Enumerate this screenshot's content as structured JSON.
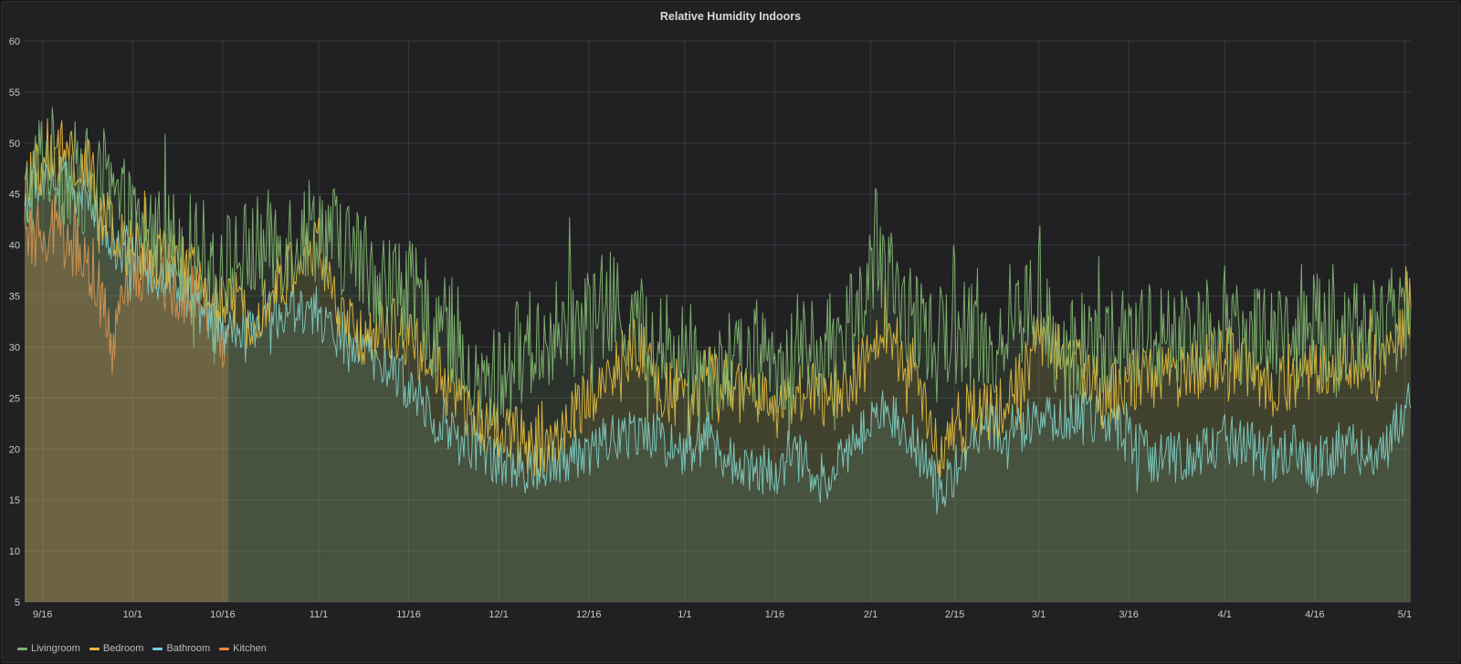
{
  "panel": {
    "title": "Relative Humidity Indoors"
  },
  "chart_data": {
    "type": "line",
    "title": "Relative Humidity Indoors",
    "xlabel": "",
    "ylabel": "",
    "ylim": [
      5,
      60
    ],
    "yticks": [
      5,
      10,
      15,
      20,
      25,
      30,
      35,
      40,
      45,
      50,
      55,
      60
    ],
    "xlim": [
      "2017-09-13",
      "2018-05-02"
    ],
    "xticks": [
      {
        "date": "2017-09-16",
        "label": "9/16"
      },
      {
        "date": "2017-10-01",
        "label": "10/1"
      },
      {
        "date": "2017-10-16",
        "label": "10/16"
      },
      {
        "date": "2017-11-01",
        "label": "11/1"
      },
      {
        "date": "2017-11-16",
        "label": "11/16"
      },
      {
        "date": "2017-12-01",
        "label": "12/1"
      },
      {
        "date": "2017-12-16",
        "label": "12/16"
      },
      {
        "date": "2018-01-01",
        "label": "1/1"
      },
      {
        "date": "2018-01-16",
        "label": "1/16"
      },
      {
        "date": "2018-02-01",
        "label": "2/1"
      },
      {
        "date": "2018-02-15",
        "label": "2/15"
      },
      {
        "date": "2018-03-01",
        "label": "3/1"
      },
      {
        "date": "2018-03-16",
        "label": "3/16"
      },
      {
        "date": "2018-04-01",
        "label": "4/1"
      },
      {
        "date": "2018-04-16",
        "label": "4/16"
      },
      {
        "date": "2018-05-01",
        "label": "5/1"
      }
    ],
    "grid": true,
    "legend_position": "bottom-left",
    "series": [
      {
        "name": "Livingroom",
        "color": "#7eb26d",
        "points": [
          [
            "2017-09-13",
            44
          ],
          [
            "2017-09-16",
            49
          ],
          [
            "2017-09-20",
            47
          ],
          [
            "2017-09-24",
            46
          ],
          [
            "2017-09-28",
            44
          ],
          [
            "2017-10-01",
            42
          ],
          [
            "2017-10-05",
            41
          ],
          [
            "2017-10-09",
            40
          ],
          [
            "2017-10-13",
            39
          ],
          [
            "2017-10-16",
            38
          ],
          [
            "2017-10-20",
            39
          ],
          [
            "2017-10-24",
            40
          ],
          [
            "2017-10-28",
            41
          ],
          [
            "2017-11-01",
            42
          ],
          [
            "2017-11-05",
            40
          ],
          [
            "2017-11-09",
            38
          ],
          [
            "2017-11-13",
            36
          ],
          [
            "2017-11-16",
            35
          ],
          [
            "2017-11-20",
            33
          ],
          [
            "2017-11-24",
            31
          ],
          [
            "2017-11-26",
            25
          ],
          [
            "2017-12-01",
            27
          ],
          [
            "2017-12-05",
            30
          ],
          [
            "2017-12-10",
            31
          ],
          [
            "2017-12-16",
            33
          ],
          [
            "2017-12-20",
            34
          ],
          [
            "2017-12-24",
            32
          ],
          [
            "2017-12-28",
            30
          ],
          [
            "2018-01-01",
            29
          ],
          [
            "2018-01-05",
            28
          ],
          [
            "2018-01-09",
            28
          ],
          [
            "2018-01-13",
            29
          ],
          [
            "2018-01-16",
            28
          ],
          [
            "2018-01-20",
            30
          ],
          [
            "2018-01-24",
            29
          ],
          [
            "2018-01-28",
            32
          ],
          [
            "2018-02-01",
            37
          ],
          [
            "2018-02-04",
            36
          ],
          [
            "2018-02-08",
            33
          ],
          [
            "2018-02-12",
            30
          ],
          [
            "2018-02-15",
            32
          ],
          [
            "2018-02-18",
            31
          ],
          [
            "2018-02-22",
            30
          ],
          [
            "2018-02-26",
            33
          ],
          [
            "2018-03-01",
            35
          ],
          [
            "2018-03-04",
            28
          ],
          [
            "2018-03-08",
            30
          ],
          [
            "2018-03-12",
            31
          ],
          [
            "2018-03-16",
            30
          ],
          [
            "2018-03-20",
            31
          ],
          [
            "2018-03-24",
            31
          ],
          [
            "2018-03-28",
            32
          ],
          [
            "2018-04-01",
            33
          ],
          [
            "2018-04-05",
            31
          ],
          [
            "2018-04-09",
            32
          ],
          [
            "2018-04-13",
            31
          ],
          [
            "2018-04-16",
            32
          ],
          [
            "2018-04-20",
            31
          ],
          [
            "2018-04-24",
            32
          ],
          [
            "2018-04-28",
            32
          ],
          [
            "2018-05-01",
            34
          ],
          [
            "2018-05-02",
            34
          ]
        ],
        "noise": 5.5
      },
      {
        "name": "Bedroom",
        "color": "#eab839",
        "points": [
          [
            "2017-09-13",
            45
          ],
          [
            "2017-09-16",
            48
          ],
          [
            "2017-09-20",
            49
          ],
          [
            "2017-09-24",
            47
          ],
          [
            "2017-09-28",
            40
          ],
          [
            "2017-10-01",
            40
          ],
          [
            "2017-10-05",
            39
          ],
          [
            "2017-10-09",
            38
          ],
          [
            "2017-10-13",
            36
          ],
          [
            "2017-10-16",
            34
          ],
          [
            "2017-10-20",
            33
          ],
          [
            "2017-10-24",
            35
          ],
          [
            "2017-10-28",
            38
          ],
          [
            "2017-11-01",
            40
          ],
          [
            "2017-11-05",
            32
          ],
          [
            "2017-11-09",
            31
          ],
          [
            "2017-11-13",
            32
          ],
          [
            "2017-11-16",
            31
          ],
          [
            "2017-11-20",
            28
          ],
          [
            "2017-11-24",
            25
          ],
          [
            "2017-11-26",
            23
          ],
          [
            "2017-12-01",
            22
          ],
          [
            "2017-12-08",
            20
          ],
          [
            "2017-12-12",
            22
          ],
          [
            "2017-12-16",
            25
          ],
          [
            "2017-12-20",
            28
          ],
          [
            "2017-12-24",
            30
          ],
          [
            "2017-12-28",
            26
          ],
          [
            "2018-01-01",
            25
          ],
          [
            "2018-01-05",
            27
          ],
          [
            "2018-01-09",
            26
          ],
          [
            "2018-01-13",
            25
          ],
          [
            "2018-01-16",
            23
          ],
          [
            "2018-01-20",
            26
          ],
          [
            "2018-01-24",
            25
          ],
          [
            "2018-01-28",
            26
          ],
          [
            "2018-02-01",
            29
          ],
          [
            "2018-02-04",
            31
          ],
          [
            "2018-02-08",
            28
          ],
          [
            "2018-02-12",
            20
          ],
          [
            "2018-02-15",
            22
          ],
          [
            "2018-02-18",
            24
          ],
          [
            "2018-02-22",
            24
          ],
          [
            "2018-02-26",
            27
          ],
          [
            "2018-03-01",
            31
          ],
          [
            "2018-03-05",
            29
          ],
          [
            "2018-03-10",
            27
          ],
          [
            "2018-03-13",
            25
          ],
          [
            "2018-03-16",
            27
          ],
          [
            "2018-03-20",
            27
          ],
          [
            "2018-03-24",
            27
          ],
          [
            "2018-03-28",
            28
          ],
          [
            "2018-04-01",
            29
          ],
          [
            "2018-04-05",
            28
          ],
          [
            "2018-04-09",
            26
          ],
          [
            "2018-04-13",
            27
          ],
          [
            "2018-04-16",
            28
          ],
          [
            "2018-04-20",
            28
          ],
          [
            "2018-04-24",
            29
          ],
          [
            "2018-04-28",
            28
          ],
          [
            "2018-05-01",
            33
          ],
          [
            "2018-05-02",
            34
          ]
        ],
        "noise": 3.2
      },
      {
        "name": "Bathroom",
        "color": "#6ed0e0",
        "points": [
          [
            "2017-09-13",
            44
          ],
          [
            "2017-09-16",
            47
          ],
          [
            "2017-09-20",
            46
          ],
          [
            "2017-09-24",
            44
          ],
          [
            "2017-09-28",
            40
          ],
          [
            "2017-10-01",
            39
          ],
          [
            "2017-10-05",
            37
          ],
          [
            "2017-10-09",
            36
          ],
          [
            "2017-10-13",
            33
          ],
          [
            "2017-10-16",
            31
          ],
          [
            "2017-10-20",
            31
          ],
          [
            "2017-10-24",
            33
          ],
          [
            "2017-10-28",
            34
          ],
          [
            "2017-11-01",
            33
          ],
          [
            "2017-11-05",
            31
          ],
          [
            "2017-11-09",
            29
          ],
          [
            "2017-11-13",
            28
          ],
          [
            "2017-11-16",
            26
          ],
          [
            "2017-11-20",
            24
          ],
          [
            "2017-11-24",
            21
          ],
          [
            "2017-11-28",
            20
          ],
          [
            "2017-12-01",
            19
          ],
          [
            "2017-12-05",
            18
          ],
          [
            "2017-12-10",
            19
          ],
          [
            "2017-12-16",
            20
          ],
          [
            "2017-12-20",
            21
          ],
          [
            "2017-12-24",
            22
          ],
          [
            "2017-12-28",
            21
          ],
          [
            "2018-01-01",
            20
          ],
          [
            "2018-01-05",
            21
          ],
          [
            "2018-01-09",
            19
          ],
          [
            "2018-01-13",
            18
          ],
          [
            "2018-01-16",
            18
          ],
          [
            "2018-01-20",
            19
          ],
          [
            "2018-01-24",
            17
          ],
          [
            "2018-01-28",
            20
          ],
          [
            "2018-02-01",
            23
          ],
          [
            "2018-02-04",
            24
          ],
          [
            "2018-02-08",
            21
          ],
          [
            "2018-02-12",
            16
          ],
          [
            "2018-02-15",
            18
          ],
          [
            "2018-02-18",
            22
          ],
          [
            "2018-02-22",
            22
          ],
          [
            "2018-02-26",
            22
          ],
          [
            "2018-03-01",
            23
          ],
          [
            "2018-03-05",
            23
          ],
          [
            "2018-03-10",
            23
          ],
          [
            "2018-03-13",
            23
          ],
          [
            "2018-03-16",
            21
          ],
          [
            "2018-03-20",
            19
          ],
          [
            "2018-03-24",
            19
          ],
          [
            "2018-03-28",
            20
          ],
          [
            "2018-04-01",
            21
          ],
          [
            "2018-04-05",
            20
          ],
          [
            "2018-04-09",
            19
          ],
          [
            "2018-04-13",
            20
          ],
          [
            "2018-04-16",
            18
          ],
          [
            "2018-04-20",
            20
          ],
          [
            "2018-04-24",
            20
          ],
          [
            "2018-04-28",
            20
          ],
          [
            "2018-05-01",
            24
          ],
          [
            "2018-05-02",
            24
          ]
        ],
        "noise": 2.6
      },
      {
        "name": "Kitchen",
        "color": "#ef843c",
        "points": [
          [
            "2017-09-13",
            39
          ],
          [
            "2017-09-16",
            42
          ],
          [
            "2017-09-20",
            41
          ],
          [
            "2017-09-24",
            38
          ],
          [
            "2017-09-28",
            30
          ],
          [
            "2017-10-01",
            38
          ],
          [
            "2017-10-05",
            37
          ],
          [
            "2017-10-09",
            36
          ],
          [
            "2017-10-13",
            34
          ],
          [
            "2017-10-16",
            31
          ],
          [
            "2017-10-17",
            31
          ]
        ],
        "noise": 3.5
      }
    ]
  },
  "legend": {
    "items": [
      {
        "label": "Livingroom",
        "color": "#7eb26d"
      },
      {
        "label": "Bedroom",
        "color": "#eab839"
      },
      {
        "label": "Bathroom",
        "color": "#6ed0e0"
      },
      {
        "label": "Kitchen",
        "color": "#ef843c"
      }
    ]
  }
}
